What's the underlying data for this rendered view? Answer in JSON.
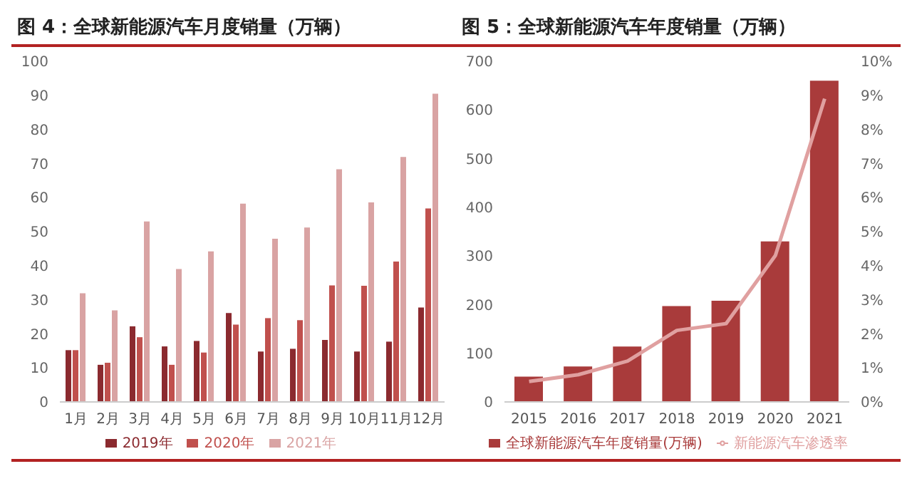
{
  "chart_data": [
    {
      "type": "bar",
      "title": "图 4：全球新能源汽车月度销量（万辆）",
      "categories": [
        "1月",
        "2月",
        "3月",
        "4月",
        "5月",
        "6月",
        "7月",
        "8月",
        "9月",
        "10月",
        "11月",
        "12月"
      ],
      "series": [
        {
          "name": "2019年",
          "color": "#8b2a2f",
          "values": [
            15.2,
            10.9,
            22.2,
            16.3,
            17.9,
            26.1,
            14.8,
            15.6,
            18.2,
            14.8,
            17.7,
            27.7
          ]
        },
        {
          "name": "2020年",
          "color": "#c0504d",
          "values": [
            15.2,
            11.5,
            19,
            10.9,
            14.5,
            22.7,
            24.6,
            24,
            34.2,
            34.1,
            41.2,
            56.8
          ]
        },
        {
          "name": "2021年",
          "color": "#d9a3a3",
          "values": [
            31.9,
            26.9,
            53,
            39,
            44.2,
            58.2,
            47.9,
            51.2,
            68.3,
            58.6,
            71.9,
            90.5
          ]
        }
      ],
      "ylim": [
        0,
        100
      ],
      "yticks": [
        0,
        10,
        20,
        30,
        40,
        50,
        60,
        70,
        80,
        90,
        100
      ],
      "grid": false,
      "legend": "bottom"
    },
    {
      "type": "bar",
      "title": "图 5：全球新能源汽车年度销量（万辆）",
      "categories": [
        "2015",
        "2016",
        "2017",
        "2018",
        "2019",
        "2020",
        "2021"
      ],
      "series": [
        {
          "name": "全球新能源汽车年度销量(万辆)",
          "color": "#a93b3b",
          "values": [
            52,
            73,
            114,
            197,
            208,
            330,
            660
          ]
        },
        {
          "name": "新能源汽车渗透率",
          "type": "line",
          "axis": "y2",
          "color": "#e0a0a0",
          "values": [
            0.6,
            0.8,
            1.2,
            2.1,
            2.3,
            4.3,
            8.9
          ]
        }
      ],
      "ylim": [
        0,
        700
      ],
      "yticks": [
        0,
        100,
        200,
        300,
        400,
        500,
        600,
        700
      ],
      "y2lim": [
        0,
        10
      ],
      "y2ticks": [
        {
          "value": 0,
          "label": "0%"
        },
        {
          "value": 1,
          "label": "1%"
        },
        {
          "value": 2,
          "label": "2%"
        },
        {
          "value": 3,
          "label": "3%"
        },
        {
          "value": 4,
          "label": "4%"
        },
        {
          "value": 5,
          "label": "5%"
        },
        {
          "value": 6,
          "label": "6%"
        },
        {
          "value": 7,
          "label": "7%"
        },
        {
          "value": 8,
          "label": "8%"
        },
        {
          "value": 9,
          "label": "9%"
        },
        {
          "value": 10,
          "label": "10%"
        }
      ],
      "grid": false,
      "legend": "bottom",
      "marker": "none"
    }
  ]
}
